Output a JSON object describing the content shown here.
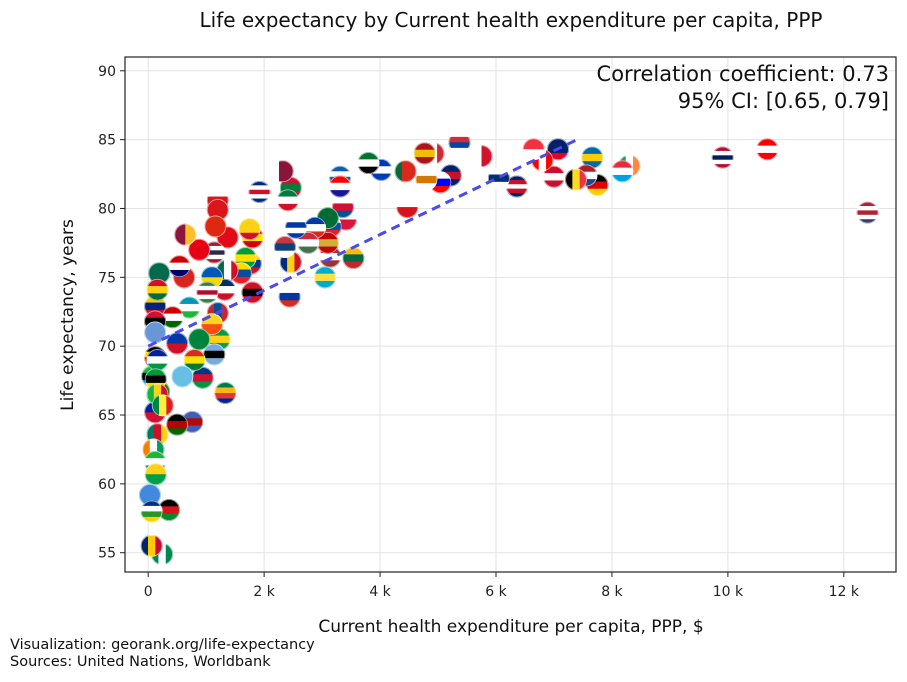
{
  "chart_data": {
    "type": "scatter",
    "title": "Life expectancy by Current health expenditure per capita, PPP",
    "xlabel": "Current health expenditure per capita, PPP, $",
    "ylabel": "Life expectancy, years",
    "xlim": [
      -400,
      12900
    ],
    "ylim": [
      53.6,
      91
    ],
    "xticks": [
      0,
      2000,
      4000,
      6000,
      8000,
      10000,
      12000
    ],
    "xtick_labels": [
      "0",
      "2 k",
      "4 k",
      "6 k",
      "8 k",
      "10 k",
      "12 k"
    ],
    "yticks": [
      55,
      60,
      65,
      70,
      75,
      80,
      85,
      90
    ],
    "ytick_labels": [
      "55",
      "60",
      "65",
      "70",
      "75",
      "80",
      "85",
      "90"
    ],
    "grid": true,
    "annotation": {
      "line1": "Correlation coefficient: 0.73",
      "line2": "95% CI: [0.65, 0.79]"
    },
    "trendline": {
      "style": "dashed",
      "color": "#4a4af0",
      "x": [
        0,
        7400
      ],
      "y": [
        70.0,
        85.0
      ]
    },
    "marker": "country-flag",
    "points": [
      {
        "c": "us",
        "x": 12410,
        "y": 79.7,
        "f": [
          "#b22234",
          "#ffffff",
          "#b22234",
          "#ffffff",
          "#3c3b6e"
        ]
      },
      {
        "c": "ch",
        "x": 10680,
        "y": 84.3,
        "f": [
          "#ff0000",
          "#ffffff",
          "#ff0000"
        ]
      },
      {
        "c": "no",
        "x": 9910,
        "y": 83.7,
        "f": [
          "#ba0c2f",
          "#ffffff",
          "#00205b",
          "#ffffff",
          "#ba0c2f"
        ]
      },
      {
        "c": "ie",
        "x": 8300,
        "y": 83.1,
        "f": [
          "#169b62",
          "#ffffff",
          "#ff883e"
        ],
        "o": "v"
      },
      {
        "c": "lu",
        "x": 8180,
        "y": 82.7,
        "f": [
          "#ed2939",
          "#ffffff",
          "#00a1de"
        ]
      },
      {
        "c": "de",
        "x": 7750,
        "y": 81.7,
        "f": [
          "#000000",
          "#dd0000",
          "#ffce00"
        ]
      },
      {
        "c": "se",
        "x": 7660,
        "y": 83.7,
        "f": [
          "#006aa7",
          "#fecc00",
          "#006aa7"
        ]
      },
      {
        "c": "nl",
        "x": 7560,
        "y": 82.4,
        "f": [
          "#ae1c28",
          "#ffffff",
          "#21468b"
        ]
      },
      {
        "c": "be",
        "x": 7380,
        "y": 82.1,
        "f": [
          "#000000",
          "#fdda24",
          "#ef3340"
        ],
        "o": "v"
      },
      {
        "c": "au",
        "x": 7070,
        "y": 84.3,
        "f": [
          "#012169",
          "#012169",
          "#e4002b"
        ]
      },
      {
        "c": "dk",
        "x": 7000,
        "y": 82.3,
        "f": [
          "#c8102e",
          "#ffffff",
          "#c8102e"
        ]
      },
      {
        "c": "ca",
        "x": 6800,
        "y": 83.5,
        "f": [
          "#ff0000",
          "#ffffff",
          "#ff0000"
        ],
        "o": "v"
      },
      {
        "c": "sg",
        "x": 6650,
        "y": 84.3,
        "f": [
          "#ef3340",
          "#ffffff"
        ]
      },
      {
        "c": "gb",
        "x": 6360,
        "y": 81.6,
        "f": [
          "#012169",
          "#c8102e",
          "#ffffff",
          "#c8102e",
          "#012169"
        ]
      },
      {
        "c": "fi",
        "x": 6050,
        "y": 82.2,
        "f": [
          "#ffffff",
          "#002f6c",
          "#ffffff"
        ]
      },
      {
        "c": "mt",
        "x": 5750,
        "y": 83.8,
        "f": [
          "#ffffff",
          "#cf142b"
        ],
        "o": "v"
      },
      {
        "c": "kr",
        "x": 5370,
        "y": 84.8,
        "f": [
          "#ffffff",
          "#cd2e3a",
          "#0047a0",
          "#ffffff"
        ]
      },
      {
        "c": "nz",
        "x": 5220,
        "y": 82.4,
        "f": [
          "#012169",
          "#c8102e",
          "#012169"
        ]
      },
      {
        "c": "si",
        "x": 5040,
        "y": 81.9,
        "f": [
          "#ffffff",
          "#0000ff",
          "#ff0000"
        ]
      },
      {
        "c": "it",
        "x": 4920,
        "y": 84.0,
        "f": [
          "#009246",
          "#ffffff",
          "#ce2b37"
        ],
        "o": "v"
      },
      {
        "c": "cy",
        "x": 4800,
        "y": 82.1,
        "f": [
          "#ffffff",
          "#d57800",
          "#ffffff"
        ]
      },
      {
        "c": "es",
        "x": 4770,
        "y": 84.0,
        "f": [
          "#aa151b",
          "#f1bf00",
          "#aa151b"
        ]
      },
      {
        "c": "cz",
        "x": 4470,
        "y": 80.1,
        "f": [
          "#ffffff",
          "#d7141a"
        ]
      },
      {
        "c": "pt",
        "x": 4440,
        "y": 82.7,
        "f": [
          "#046a38",
          "#da291c",
          "#da291c"
        ],
        "o": "v"
      },
      {
        "c": "il",
        "x": 4020,
        "y": 82.8,
        "f": [
          "#0038b8",
          "#ffffff",
          "#0038b8"
        ]
      },
      {
        "c": "ae",
        "x": 3800,
        "y": 83.3,
        "f": [
          "#00732f",
          "#ffffff",
          "#000000"
        ]
      },
      {
        "c": "pl",
        "x": 3410,
        "y": 79.2,
        "f": [
          "#ffffff",
          "#dc143c"
        ]
      },
      {
        "c": "pa",
        "x": 3360,
        "y": 80.1,
        "f": [
          "#ffffff",
          "#d21034",
          "#005293"
        ]
      },
      {
        "c": "gr",
        "x": 3310,
        "y": 82.3,
        "f": [
          "#0d5eaf",
          "#ffffff",
          "#0d5eaf",
          "#ffffff"
        ]
      },
      {
        "c": "hr",
        "x": 3310,
        "y": 81.6,
        "f": [
          "#ff0000",
          "#ffffff",
          "#171796"
        ]
      },
      {
        "c": "sk",
        "x": 3150,
        "y": 78.7,
        "f": [
          "#ffffff",
          "#0b4ea2",
          "#ee1c25"
        ]
      },
      {
        "c": "lv",
        "x": 3140,
        "y": 76.5,
        "f": [
          "#9e3039",
          "#ffffff",
          "#9e3039"
        ]
      },
      {
        "c": "sa",
        "x": 3100,
        "y": 79.3,
        "f": [
          "#006c35",
          "#006c35"
        ]
      },
      {
        "c": "me",
        "x": 3100,
        "y": 77.5,
        "f": [
          "#c40308",
          "#d4af37",
          "#c40308"
        ]
      },
      {
        "c": "bs",
        "x": 3050,
        "y": 75.0,
        "f": [
          "#00abc9",
          "#fae042",
          "#00abc9"
        ]
      },
      {
        "c": "cl",
        "x": 2880,
        "y": 78.6,
        "f": [
          "#0039a6",
          "#ffffff",
          "#d52b1e"
        ]
      },
      {
        "c": "hu",
        "x": 2760,
        "y": 77.5,
        "f": [
          "#ce2939",
          "#ffffff",
          "#477050"
        ]
      },
      {
        "c": "uy",
        "x": 2550,
        "y": 78.6,
        "f": [
          "#ffffff",
          "#0038a8",
          "#ffffff",
          "#0038a8"
        ]
      },
      {
        "c": "lt",
        "x": 3540,
        "y": 76.4,
        "f": [
          "#fdb913",
          "#006a44",
          "#c1272d"
        ]
      },
      {
        "c": "mv",
        "x": 2460,
        "y": 81.5,
        "f": [
          "#d21034",
          "#007e3a",
          "#d21034"
        ]
      },
      {
        "c": "ro",
        "x": 2460,
        "y": 76.1,
        "f": [
          "#002b7f",
          "#fcd116",
          "#ce1126"
        ],
        "o": "v"
      },
      {
        "c": "ru",
        "x": 2440,
        "y": 73.6,
        "f": [
          "#ffffff",
          "#0039a6",
          "#d52b1e"
        ]
      },
      {
        "c": "kw",
        "x": 2410,
        "y": 80.6,
        "f": [
          "#007a3d",
          "#ffffff",
          "#ce1126"
        ]
      },
      {
        "c": "rs",
        "x": 2360,
        "y": 77.2,
        "f": [
          "#c6363c",
          "#0c4076",
          "#ffffff"
        ]
      },
      {
        "c": "qa",
        "x": 2320,
        "y": 82.7,
        "f": [
          "#ffffff",
          "#8a1538",
          "#8a1538"
        ],
        "o": "v"
      },
      {
        "c": "cr",
        "x": 1920,
        "y": 81.2,
        "f": [
          "#002b7f",
          "#ffffff",
          "#ce1126",
          "#ffffff",
          "#002b7f"
        ]
      },
      {
        "c": "tt",
        "x": 1800,
        "y": 73.9,
        "f": [
          "#ce1126",
          "#000000",
          "#ce1126"
        ]
      },
      {
        "c": "mk",
        "x": 1800,
        "y": 77.9,
        "f": [
          "#d20000",
          "#ffe600",
          "#d20000"
        ]
      },
      {
        "c": "co",
        "x": 1770,
        "y": 76.0,
        "f": [
          "#fcd116",
          "#003893",
          "#ce1126"
        ]
      },
      {
        "c": "by",
        "x": 1750,
        "y": 78.5,
        "f": [
          "#fcd116",
          "#fcd116",
          "#ce1126"
        ]
      },
      {
        "c": "br",
        "x": 1680,
        "y": 76.4,
        "f": [
          "#009c3b",
          "#ffdf00",
          "#009c3b"
        ]
      },
      {
        "c": "ec",
        "x": 1600,
        "y": 75.3,
        "f": [
          "#ffdd00",
          "#034ea2",
          "#ed1c24"
        ]
      },
      {
        "c": "tr",
        "x": 1370,
        "y": 77.9,
        "f": [
          "#e30a17",
          "#e30a17"
        ]
      },
      {
        "c": "mx",
        "x": 1370,
        "y": 75.5,
        "f": [
          "#006847",
          "#ffffff",
          "#ce1126"
        ],
        "o": "v"
      },
      {
        "c": "za",
        "x": 1330,
        "y": 66.6,
        "f": [
          "#007a4d",
          "#ffb612",
          "#de3831",
          "#002395"
        ]
      },
      {
        "c": "do",
        "x": 1320,
        "y": 74.1,
        "f": [
          "#002d62",
          "#ffffff",
          "#ce1126"
        ]
      },
      {
        "c": "gy",
        "x": 1230,
        "y": 70.5,
        "f": [
          "#009e49",
          "#fcd116",
          "#009e49"
        ]
      },
      {
        "c": "om",
        "x": 1200,
        "y": 80.6,
        "f": [
          "#ffffff",
          "#db161b",
          "#008000"
        ]
      },
      {
        "c": "om2",
        "x": 1200,
        "y": 79.9,
        "f": [
          "#db161b",
          "#db161b"
        ]
      },
      {
        "c": "mn",
        "x": 1200,
        "y": 72.4,
        "f": [
          "#c4272f",
          "#015197",
          "#c4272f"
        ],
        "o": "v"
      },
      {
        "c": "cn",
        "x": 1160,
        "y": 78.7,
        "f": [
          "#de2910",
          "#de2910"
        ]
      },
      {
        "c": "th",
        "x": 1140,
        "y": 76.8,
        "f": [
          "#a51931",
          "#ffffff",
          "#2d2a4a",
          "#ffffff",
          "#a51931"
        ]
      },
      {
        "c": "bw",
        "x": 1140,
        "y": 69.4,
        "f": [
          "#75aadb",
          "#000000",
          "#75aadb"
        ]
      },
      {
        "c": "ua",
        "x": 1100,
        "y": 75.0,
        "f": [
          "#0057b7",
          "#ffd700"
        ]
      },
      {
        "c": "bt",
        "x": 1100,
        "y": 71.6,
        "f": [
          "#ffd520",
          "#ff4e12"
        ]
      },
      {
        "c": "sr",
        "x": 1020,
        "y": 73.9,
        "f": [
          "#377e3f",
          "#ffffff",
          "#b40a2d",
          "#ffffff",
          "#377e3f"
        ]
      },
      {
        "c": "na",
        "x": 940,
        "y": 67.7,
        "f": [
          "#003580",
          "#d21034",
          "#009543"
        ]
      },
      {
        "c": "tn",
        "x": 880,
        "y": 77.0,
        "f": [
          "#e70013",
          "#e70013"
        ]
      },
      {
        "c": "tm",
        "x": 880,
        "y": 70.5,
        "f": [
          "#00843d",
          "#00843d"
        ]
      },
      {
        "c": "bo",
        "x": 800,
        "y": 69.0,
        "f": [
          "#d52b1e",
          "#f9e300",
          "#007934"
        ]
      },
      {
        "c": "sz",
        "x": 760,
        "y": 64.5,
        "f": [
          "#3e5eb9",
          "#b10c0c",
          "#3e5eb9"
        ]
      },
      {
        "c": "uz",
        "x": 710,
        "y": 72.8,
        "f": [
          "#0099b5",
          "#ffffff",
          "#1eb53a"
        ]
      },
      {
        "c": "lk",
        "x": 640,
        "y": 78.1,
        "f": [
          "#8d153a",
          "#ffbe29"
        ],
        "o": "v"
      },
      {
        "c": "vn",
        "x": 620,
        "y": 75.0,
        "f": [
          "#da251d",
          "#da251d"
        ]
      },
      {
        "c": "fj",
        "x": 590,
        "y": 67.8,
        "f": [
          "#68bfe5",
          "#68bfe5"
        ]
      },
      {
        "c": "my",
        "x": 540,
        "y": 75.8,
        "f": [
          "#cc0001",
          "#ffffff",
          "#010066"
        ]
      },
      {
        "c": "ph",
        "x": 500,
        "y": 70.2,
        "f": [
          "#0038a8",
          "#ce1126"
        ]
      },
      {
        "c": "ke",
        "x": 500,
        "y": 64.3,
        "f": [
          "#000000",
          "#bb0000",
          "#006600"
        ]
      },
      {
        "c": "tj",
        "x": 420,
        "y": 72.1,
        "f": [
          "#cc0000",
          "#ffffff",
          "#006600"
        ]
      },
      {
        "c": "ss",
        "x": 360,
        "y": 58.1,
        "f": [
          "#000000",
          "#da121a",
          "#078930"
        ]
      },
      {
        "c": "ng",
        "x": 240,
        "y": 54.9,
        "f": [
          "#008751",
          "#ffffff",
          "#008751"
        ],
        "o": "v"
      },
      {
        "c": "bd",
        "x": 190,
        "y": 75.3,
        "f": [
          "#006a4e",
          "#006a4e"
        ]
      },
      {
        "c": "zm",
        "x": 190,
        "y": 66.7,
        "f": [
          "#198a00",
          "#198a00"
        ]
      },
      {
        "c": "ve",
        "x": 120,
        "y": 72.9,
        "f": [
          "#ffcc00",
          "#00247d",
          "#cf142b"
        ]
      },
      {
        "c": "vu",
        "x": 120,
        "y": 71.8,
        "f": [
          "#d21034",
          "#000000",
          "#009543"
        ]
      },
      {
        "c": "fm",
        "x": 120,
        "y": 71.0,
        "f": [
          "#6797d6",
          "#6797d6"
        ]
      },
      {
        "c": "ug",
        "x": 120,
        "y": 69.2,
        "f": [
          "#000000",
          "#fcdc04",
          "#d90000",
          "#000000"
        ]
      },
      {
        "c": "ht",
        "x": 120,
        "y": 65.2,
        "f": [
          "#00209f",
          "#d21034"
        ]
      },
      {
        "c": "tz",
        "x": 70,
        "y": 67.8,
        "f": [
          "#1eb53a",
          "#000000",
          "#00a3dd"
        ]
      },
      {
        "c": "gh",
        "x": 160,
        "y": 74.1,
        "f": [
          "#ce1126",
          "#fcd116",
          "#006b3f"
        ]
      },
      {
        "c": "ls",
        "x": 160,
        "y": 69.0,
        "f": [
          "#00209f",
          "#ffffff",
          "#009543"
        ]
      },
      {
        "c": "mz",
        "x": 130,
        "y": 67.6,
        "f": [
          "#009739",
          "#000000",
          "#fce100"
        ]
      },
      {
        "c": "ml",
        "x": 160,
        "y": 66.5,
        "f": [
          "#14b53a",
          "#fcd116",
          "#ce1126"
        ],
        "o": "v"
      },
      {
        "c": "sn",
        "x": 250,
        "y": 65.7,
        "f": [
          "#00853f",
          "#fdef42",
          "#e31b23"
        ],
        "o": "v"
      },
      {
        "c": "cm",
        "x": 160,
        "y": 63.6,
        "f": [
          "#007a5e",
          "#ce1126",
          "#fcd116"
        ],
        "o": "v"
      },
      {
        "c": "ci",
        "x": 90,
        "y": 62.5,
        "f": [
          "#f77f00",
          "#ffffff",
          "#009e60"
        ],
        "o": "v"
      },
      {
        "c": "sl",
        "x": 120,
        "y": 61.6,
        "f": [
          "#1eb53a",
          "#ffffff",
          "#0072c6"
        ]
      },
      {
        "c": "gw",
        "x": 130,
        "y": 60.7,
        "f": [
          "#fcd116",
          "#009e49"
        ]
      },
      {
        "c": "so",
        "x": 30,
        "y": 59.2,
        "f": [
          "#4189dd",
          "#4189dd"
        ]
      },
      {
        "c": "cf",
        "x": 60,
        "y": 58.0,
        "f": [
          "#003082",
          "#ffffff",
          "#289728",
          "#ffce00"
        ]
      },
      {
        "c": "td",
        "x": 60,
        "y": 55.5,
        "f": [
          "#002664",
          "#fecb00",
          "#c60c30"
        ],
        "o": "v"
      }
    ]
  },
  "footer": {
    "line1": "Visualization: georank.org/life-expectancy",
    "line2": "Sources: United Nations, Worldbank"
  }
}
